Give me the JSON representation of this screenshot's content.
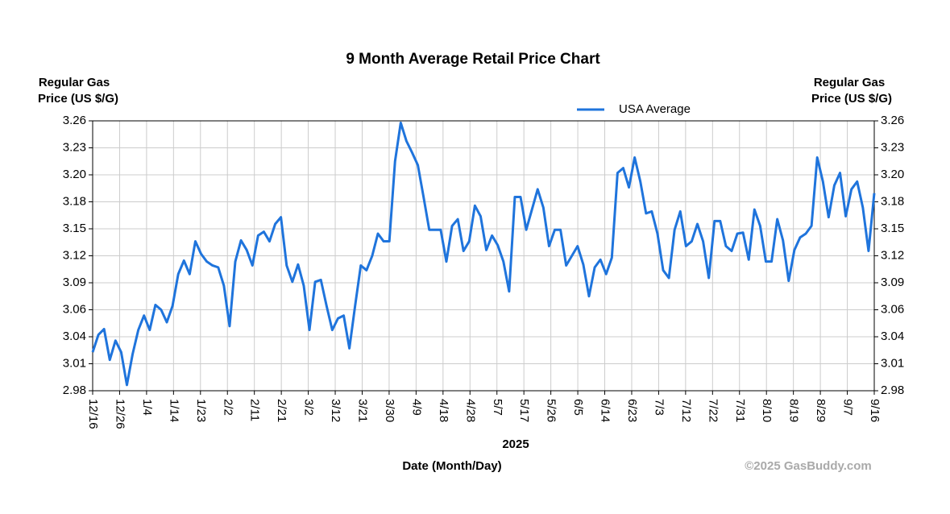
{
  "chart_data": {
    "type": "line",
    "title": "9 Month Average Retail Price Chart",
    "y_label": [
      "Regular Gas",
      "Price (US $/G)"
    ],
    "x_label": "Date (Month/Day)",
    "year": "2025",
    "watermark": "©2025 GasBuddy.com",
    "legend": "top-right",
    "grid": true,
    "ylim": [
      2.98,
      3.26
    ],
    "yticks": [
      2.98,
      {
        "value": 3.008,
        "label": "3.01"
      },
      {
        "value": 3.036,
        "label": "3.04"
      },
      {
        "value": 3.064,
        "label": "3.06"
      },
      {
        "value": 3.092,
        "label": "3.09"
      },
      3.12,
      {
        "value": 3.148,
        "label": "3.15"
      },
      {
        "value": 3.176,
        "label": "3.18"
      },
      {
        "value": 3.204,
        "label": "3.20"
      },
      {
        "value": 3.232,
        "label": "3.23"
      },
      3.26
    ],
    "xticks": [
      "12/16",
      "12/26",
      "1/4",
      "1/14",
      "1/23",
      "2/2",
      "2/11",
      "2/21",
      "3/2",
      "3/12",
      "3/21",
      "3/30",
      "4/9",
      "4/18",
      "4/28",
      "5/7",
      "5/17",
      "5/26",
      "6/5",
      "6/14",
      "6/23",
      "7/3",
      "7/12",
      "7/22",
      "7/31",
      "8/10",
      "8/19",
      "8/29",
      "9/7",
      "9/16"
    ],
    "x": [
      "12/16",
      "12/18",
      "12/20",
      "12/22",
      "12/24",
      "12/26",
      "12/28",
      "12/30",
      "1/1",
      "1/3",
      "1/5",
      "1/7",
      "1/9",
      "1/11",
      "1/13",
      "1/15",
      "1/17",
      "1/19",
      "1/21",
      "1/23",
      "1/25",
      "1/27",
      "1/29",
      "1/31",
      "2/2",
      "2/4",
      "2/6",
      "2/8",
      "2/10",
      "2/12",
      "2/14",
      "2/16",
      "2/18",
      "2/20",
      "2/22",
      "2/24",
      "2/26",
      "2/28",
      "3/2",
      "3/4",
      "3/6",
      "3/8",
      "3/10",
      "3/12",
      "3/14",
      "3/16",
      "3/18",
      "3/20",
      "3/22",
      "3/24",
      "3/26",
      "3/28",
      "3/30",
      "4/1",
      "4/3",
      "4/5",
      "4/7",
      "4/9",
      "4/11",
      "4/13",
      "4/15",
      "4/17",
      "4/19",
      "4/21",
      "4/23",
      "4/25",
      "4/27",
      "4/29",
      "5/1",
      "5/3",
      "5/5",
      "5/7",
      "5/9",
      "5/11",
      "5/13",
      "5/15",
      "5/17",
      "5/19",
      "5/21",
      "5/23",
      "5/25",
      "5/27",
      "5/29",
      "5/31",
      "6/2",
      "6/4",
      "6/6",
      "6/8",
      "6/10",
      "6/12",
      "6/14",
      "6/16",
      "6/18",
      "6/20",
      "6/22",
      "6/24",
      "6/26",
      "6/28",
      "6/30",
      "7/2",
      "7/4",
      "7/6",
      "7/8",
      "7/10",
      "7/12",
      "7/14",
      "7/16",
      "7/18",
      "7/20",
      "7/22",
      "7/24",
      "7/26",
      "7/28",
      "7/30",
      "8/1",
      "8/3",
      "8/5",
      "8/7",
      "8/9",
      "8/11",
      "8/13",
      "8/15",
      "8/17",
      "8/19",
      "8/21",
      "8/23",
      "8/25",
      "8/27",
      "8/29",
      "8/31",
      "9/2",
      "9/4",
      "9/6",
      "9/8",
      "9/10",
      "9/12",
      "9/14",
      "9/16"
    ],
    "series": [
      {
        "name": "USA Average",
        "color": "#1f74dc",
        "values": [
          3.02,
          3.038,
          3.044,
          3.012,
          3.032,
          3.02,
          2.986,
          3.018,
          3.043,
          3.058,
          3.043,
          3.069,
          3.064,
          3.051,
          3.068,
          3.101,
          3.115,
          3.101,
          3.135,
          3.122,
          3.114,
          3.11,
          3.108,
          3.089,
          3.047,
          3.114,
          3.136,
          3.126,
          3.11,
          3.141,
          3.145,
          3.135,
          3.153,
          3.16,
          3.11,
          3.093,
          3.111,
          3.089,
          3.043,
          3.093,
          3.095,
          3.068,
          3.043,
          3.055,
          3.058,
          3.024,
          3.068,
          3.11,
          3.105,
          3.12,
          3.143,
          3.135,
          3.135,
          3.218,
          3.258,
          3.239,
          3.227,
          3.214,
          3.181,
          3.147,
          3.147,
          3.147,
          3.114,
          3.151,
          3.158,
          3.125,
          3.135,
          3.172,
          3.161,
          3.126,
          3.141,
          3.131,
          3.114,
          3.083,
          3.181,
          3.181,
          3.147,
          3.168,
          3.189,
          3.17,
          3.13,
          3.147,
          3.147,
          3.11,
          3.12,
          3.13,
          3.111,
          3.078,
          3.108,
          3.116,
          3.101,
          3.118,
          3.206,
          3.211,
          3.191,
          3.222,
          3.197,
          3.164,
          3.166,
          3.143,
          3.105,
          3.097,
          3.147,
          3.166,
          3.13,
          3.135,
          3.153,
          3.135,
          3.097,
          3.156,
          3.156,
          3.13,
          3.125,
          3.143,
          3.144,
          3.116,
          3.168,
          3.151,
          3.114,
          3.114,
          3.158,
          3.136,
          3.094,
          3.126,
          3.139,
          3.143,
          3.151,
          3.222,
          3.197,
          3.16,
          3.193,
          3.206,
          3.161,
          3.189,
          3.197,
          3.17,
          3.125,
          3.185
        ]
      }
    ]
  }
}
